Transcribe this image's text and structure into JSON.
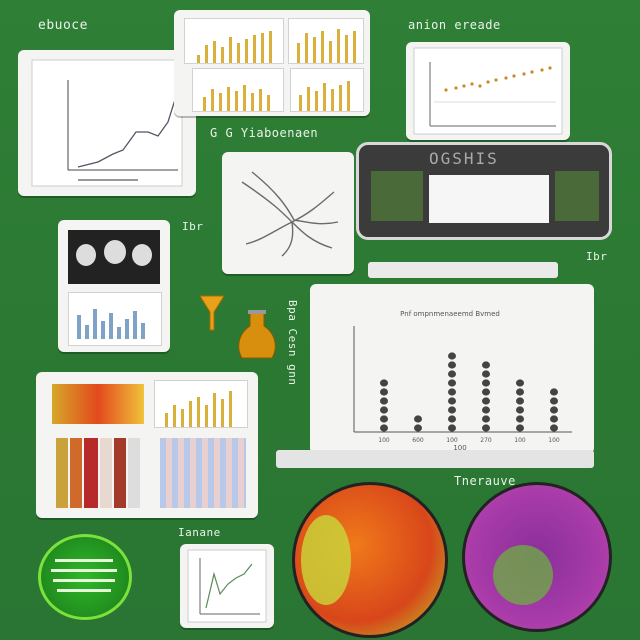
{
  "labels": {
    "top_left": "ebuoce",
    "top_right": "anion ereade",
    "mid": "G G Yiaboenaen",
    "side_left": "Ibr",
    "side_right": "Ibr",
    "vertical_mid": "Bpa Cesn gnn",
    "bottom_mid": "Ianane",
    "bottom_right": "Tnerauve",
    "device_title": "OGSHIS"
  },
  "bar_chart": {
    "title": "Pnf ompnmenaeemd Bvmed",
    "x_labels": [
      "100",
      "600",
      "100",
      "270",
      "100",
      "100"
    ],
    "xlabel": "100",
    "values": [
      6,
      2,
      9,
      8,
      6,
      5
    ]
  },
  "colors": {
    "background": "#2f7f36",
    "accent_yellow": "#d9b13a",
    "flask_amber": "#d98f0e",
    "dark_gray": "#444444"
  },
  "icons": [
    "funnel-icon",
    "flask-icon",
    "branching-structure-icon"
  ]
}
